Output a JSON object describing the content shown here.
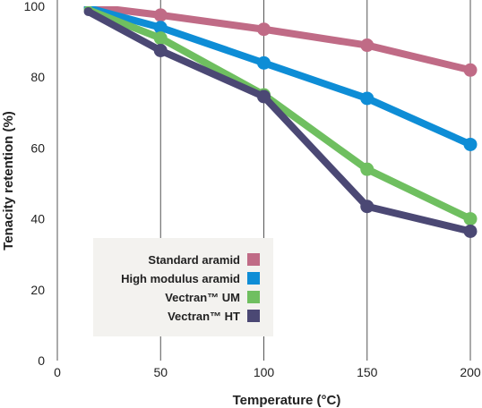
{
  "chart_data": {
    "type": "line",
    "xlabel": "Temperature (°C)",
    "ylabel": "Tenacity retention (%)",
    "xlim": [
      0,
      200
    ],
    "ylim": [
      0,
      100
    ],
    "xticks": [
      0,
      50,
      100,
      150,
      200
    ],
    "yticks": [
      0,
      20,
      40,
      60,
      80,
      100
    ],
    "grid": {
      "vertical": true,
      "horizontal": false
    },
    "legend_position": "bottom-left",
    "series": [
      {
        "name": "Standard aramid",
        "color": "#c06b86",
        "x": [
          15,
          50,
          100,
          150,
          200
        ],
        "y": [
          100,
          97.5,
          93.5,
          89,
          82
        ]
      },
      {
        "name": "High modulus aramid",
        "color": "#0e8dd6",
        "x": [
          15,
          50,
          100,
          150,
          200
        ],
        "y": [
          99.5,
          94,
          84,
          74,
          61
        ]
      },
      {
        "name": "Vectran™ UM",
        "color": "#6fbf60",
        "x": [
          15,
          50,
          100,
          150,
          200
        ],
        "y": [
          99,
          91,
          75,
          54,
          40
        ]
      },
      {
        "name": "Vectran™ HT",
        "color": "#4b4874",
        "x": [
          15,
          50,
          100,
          150,
          200
        ],
        "y": [
          98.5,
          87.5,
          74.5,
          43.5,
          36.5
        ]
      }
    ]
  }
}
